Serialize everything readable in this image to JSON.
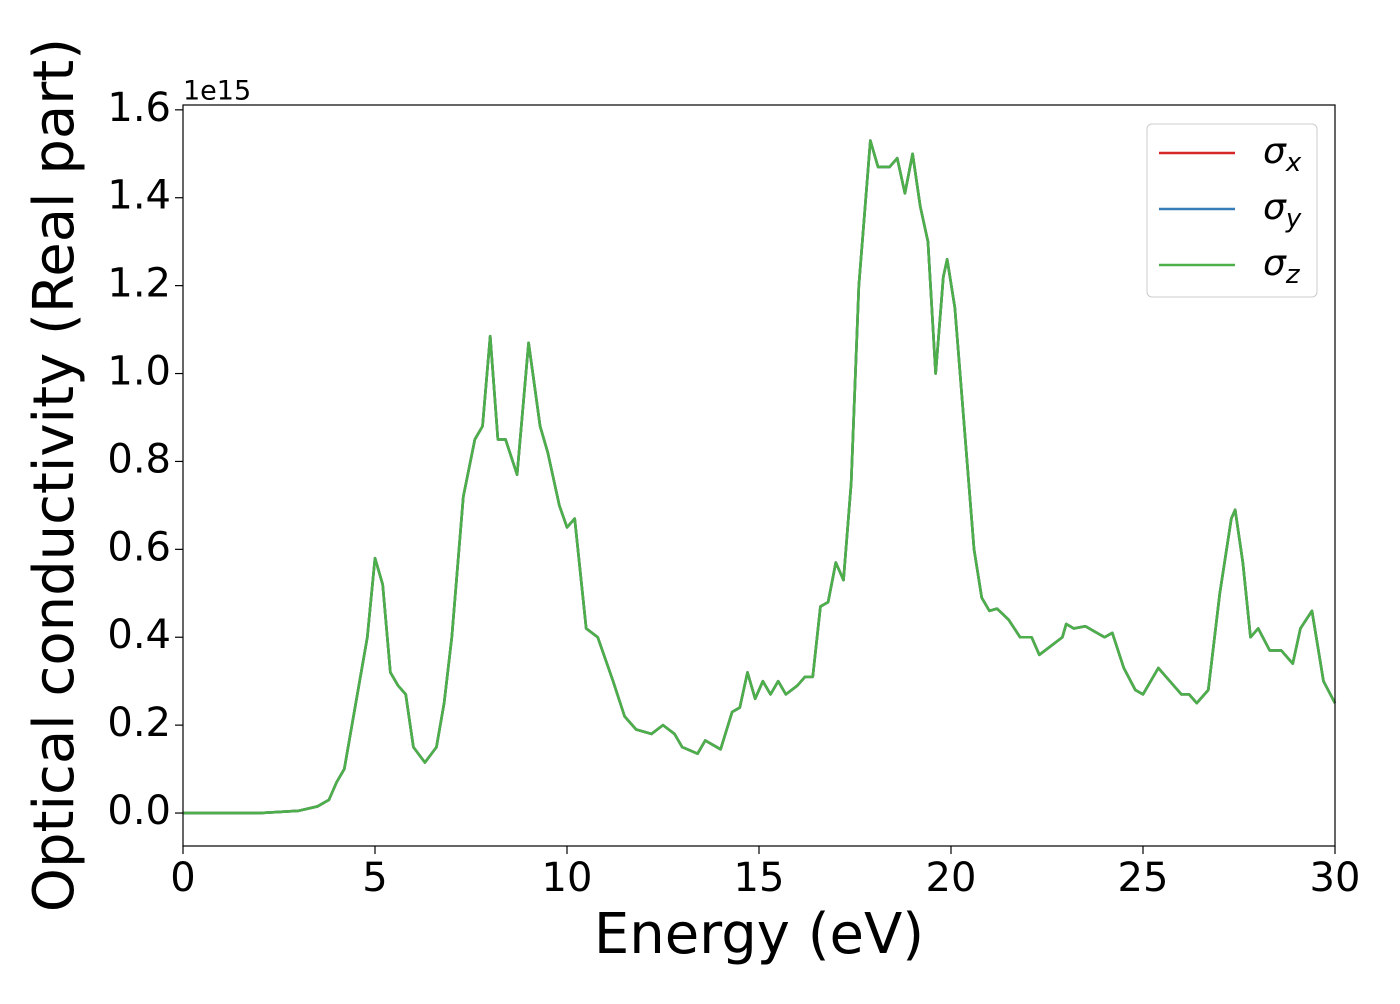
{
  "chart_data": {
    "type": "line",
    "xlabel": "Energy (eV)",
    "ylabel": "Optical conductivity (Real part)",
    "y_offset_text": "1e15",
    "x": [
      0,
      2,
      3,
      3.5,
      3.8,
      4.0,
      4.2,
      4.5,
      4.8,
      5.0,
      5.2,
      5.4,
      5.6,
      5.8,
      6.0,
      6.3,
      6.6,
      6.8,
      7.0,
      7.3,
      7.6,
      7.8,
      8.0,
      8.2,
      8.4,
      8.7,
      9.0,
      9.3,
      9.5,
      9.8,
      10.0,
      10.2,
      10.5,
      10.8,
      11.2,
      11.5,
      11.8,
      12.2,
      12.5,
      12.8,
      13.0,
      13.4,
      13.6,
      14.0,
      14.3,
      14.5,
      14.7,
      14.9,
      15.1,
      15.3,
      15.5,
      15.7,
      16.0,
      16.2,
      16.4,
      16.6,
      16.8,
      17.0,
      17.2,
      17.4,
      17.6,
      17.9,
      18.1,
      18.4,
      18.6,
      18.8,
      19.0,
      19.2,
      19.4,
      19.6,
      19.8,
      19.9,
      20.1,
      20.3,
      20.6,
      20.8,
      21.0,
      21.2,
      21.5,
      21.8,
      22.1,
      22.3,
      22.6,
      22.9,
      23.0,
      23.2,
      23.5,
      23.8,
      24.0,
      24.2,
      24.5,
      24.8,
      25.0,
      25.4,
      25.7,
      26.0,
      26.2,
      26.4,
      26.7,
      27.0,
      27.3,
      27.4,
      27.6,
      27.8,
      28.0,
      28.3,
      28.6,
      28.9,
      29.1,
      29.4,
      29.7,
      30.0
    ],
    "series": [
      {
        "name": "σx",
        "color": "#d62728",
        "values": [
          0,
          0,
          0.005,
          0.015,
          0.03,
          0.07,
          0.1,
          0.25,
          0.4,
          0.58,
          0.52,
          0.32,
          0.29,
          0.27,
          0.15,
          0.115,
          0.15,
          0.25,
          0.4,
          0.72,
          0.85,
          0.88,
          1.085,
          0.85,
          0.85,
          0.77,
          1.07,
          0.88,
          0.82,
          0.7,
          0.65,
          0.67,
          0.42,
          0.4,
          0.3,
          0.22,
          0.19,
          0.18,
          0.2,
          0.18,
          0.15,
          0.135,
          0.165,
          0.145,
          0.23,
          0.24,
          0.32,
          0.26,
          0.3,
          0.27,
          0.3,
          0.27,
          0.29,
          0.31,
          0.31,
          0.47,
          0.48,
          0.57,
          0.53,
          0.75,
          1.2,
          1.53,
          1.47,
          1.47,
          1.49,
          1.41,
          1.5,
          1.38,
          1.3,
          1.0,
          1.22,
          1.26,
          1.15,
          0.93,
          0.6,
          0.49,
          0.46,
          0.465,
          0.44,
          0.4,
          0.4,
          0.36,
          0.38,
          0.4,
          0.43,
          0.42,
          0.425,
          0.41,
          0.4,
          0.41,
          0.33,
          0.28,
          0.27,
          0.33,
          0.3,
          0.27,
          0.27,
          0.25,
          0.28,
          0.5,
          0.67,
          0.69,
          0.57,
          0.4,
          0.42,
          0.37,
          0.37,
          0.34,
          0.42,
          0.46,
          0.3,
          0.25
        ]
      },
      {
        "name": "σy",
        "color": "#377eb8",
        "values": [
          0,
          0,
          0.005,
          0.015,
          0.03,
          0.07,
          0.1,
          0.25,
          0.4,
          0.58,
          0.52,
          0.32,
          0.29,
          0.27,
          0.15,
          0.115,
          0.15,
          0.25,
          0.4,
          0.72,
          0.85,
          0.88,
          1.085,
          0.85,
          0.85,
          0.77,
          1.07,
          0.88,
          0.82,
          0.7,
          0.65,
          0.67,
          0.42,
          0.4,
          0.3,
          0.22,
          0.19,
          0.18,
          0.2,
          0.18,
          0.15,
          0.135,
          0.165,
          0.145,
          0.23,
          0.24,
          0.32,
          0.26,
          0.3,
          0.27,
          0.3,
          0.27,
          0.29,
          0.31,
          0.31,
          0.47,
          0.48,
          0.57,
          0.53,
          0.75,
          1.2,
          1.53,
          1.47,
          1.47,
          1.49,
          1.41,
          1.5,
          1.38,
          1.3,
          1.0,
          1.22,
          1.26,
          1.15,
          0.93,
          0.6,
          0.49,
          0.46,
          0.465,
          0.44,
          0.4,
          0.4,
          0.36,
          0.38,
          0.4,
          0.43,
          0.42,
          0.425,
          0.41,
          0.4,
          0.41,
          0.33,
          0.28,
          0.27,
          0.33,
          0.3,
          0.27,
          0.27,
          0.25,
          0.28,
          0.5,
          0.67,
          0.69,
          0.57,
          0.4,
          0.42,
          0.37,
          0.37,
          0.34,
          0.42,
          0.46,
          0.3,
          0.25
        ]
      },
      {
        "name": "σz",
        "color": "#4daf4a",
        "values": [
          0,
          0,
          0.005,
          0.015,
          0.03,
          0.07,
          0.1,
          0.25,
          0.4,
          0.58,
          0.52,
          0.32,
          0.29,
          0.27,
          0.15,
          0.115,
          0.15,
          0.25,
          0.4,
          0.72,
          0.85,
          0.88,
          1.085,
          0.85,
          0.85,
          0.77,
          1.07,
          0.88,
          0.82,
          0.7,
          0.65,
          0.67,
          0.42,
          0.4,
          0.3,
          0.22,
          0.19,
          0.18,
          0.2,
          0.18,
          0.15,
          0.135,
          0.165,
          0.145,
          0.23,
          0.24,
          0.32,
          0.26,
          0.3,
          0.27,
          0.3,
          0.27,
          0.29,
          0.31,
          0.31,
          0.47,
          0.48,
          0.57,
          0.53,
          0.75,
          1.2,
          1.53,
          1.47,
          1.47,
          1.49,
          1.41,
          1.5,
          1.38,
          1.3,
          1.0,
          1.22,
          1.26,
          1.15,
          0.93,
          0.6,
          0.49,
          0.46,
          0.465,
          0.44,
          0.4,
          0.4,
          0.36,
          0.38,
          0.4,
          0.43,
          0.42,
          0.425,
          0.41,
          0.4,
          0.41,
          0.33,
          0.28,
          0.27,
          0.33,
          0.3,
          0.27,
          0.27,
          0.25,
          0.28,
          0.5,
          0.67,
          0.69,
          0.57,
          0.4,
          0.42,
          0.37,
          0.37,
          0.34,
          0.42,
          0.46,
          0.3,
          0.25
        ]
      }
    ],
    "xlim": [
      0,
      30
    ],
    "xticks": [
      0,
      5,
      10,
      15,
      20,
      25,
      30
    ],
    "ylim": [
      -0.075,
      1.611
    ],
    "yticks": [
      {
        "value": 0,
        "label": "0.0"
      },
      0.2,
      0.4,
      0.6,
      0.8,
      {
        "value": 1,
        "label": "1.0"
      },
      1.2,
      1.4,
      1.6
    ],
    "grid": false,
    "legend": "upper right"
  }
}
